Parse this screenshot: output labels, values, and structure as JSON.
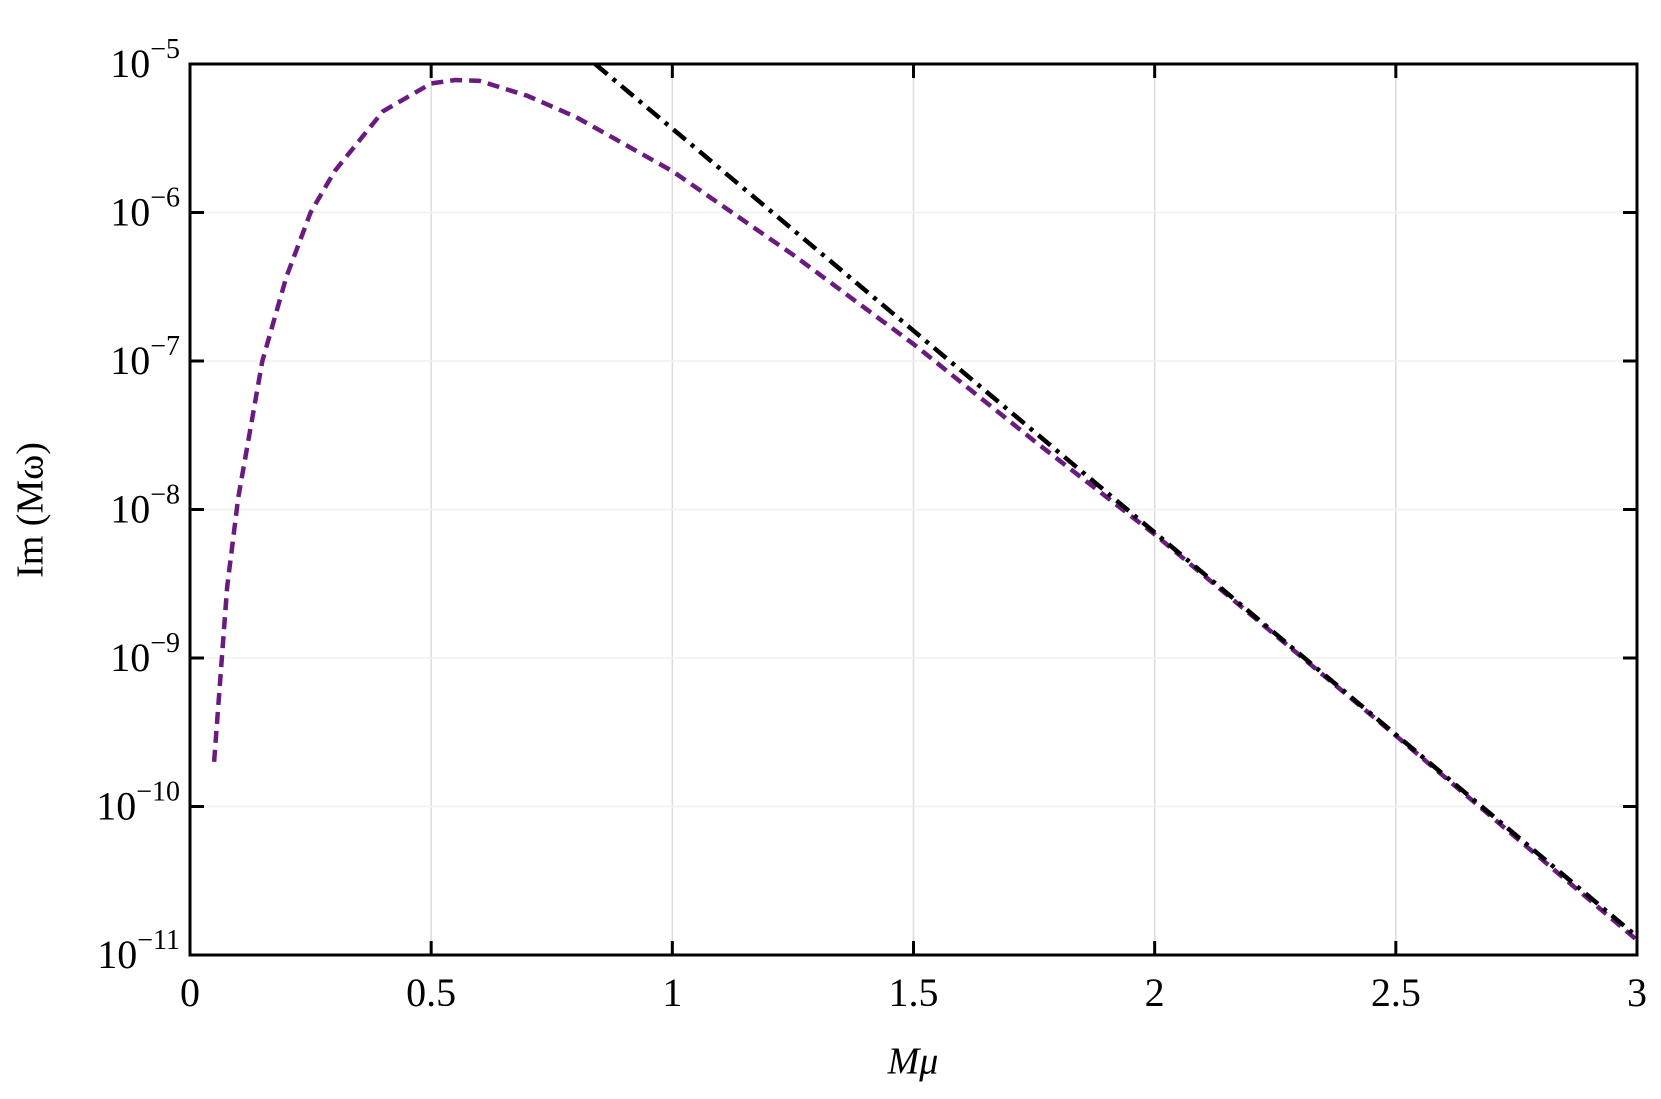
{
  "chart_data": {
    "type": "line",
    "x_label": "Mμ",
    "y_label": "Im (Mω)",
    "xlim": [
      0,
      3
    ],
    "xticks": [
      0,
      0.5,
      1,
      1.5,
      2,
      2.5,
      3
    ],
    "ylim": [
      1e-11,
      1e-05
    ],
    "log_y": true,
    "grid": true,
    "yticks": [
      {
        "value": 1e-11,
        "label": "10−11"
      },
      {
        "value": 1e-10,
        "label": "10−10"
      },
      {
        "value": 1e-09,
        "label": "10−9"
      },
      {
        "value": 1e-08,
        "label": "10−8"
      },
      {
        "value": 1e-07,
        "label": "10−7"
      },
      {
        "value": 1e-06,
        "label": "10−6"
      },
      {
        "value": 1e-05,
        "label": "10−5"
      }
    ],
    "series": [
      {
        "color": "#6a1b80",
        "style": "dashed",
        "x": [
          0.05,
          0.077,
          0.1,
          0.15,
          0.2,
          0.25,
          0.3,
          0.4,
          0.5,
          0.55,
          0.6,
          0.7,
          0.8,
          1.0,
          1.25,
          1.5,
          1.75,
          2.0,
          2.5,
          3.0
        ],
        "values": [
          2e-10,
          3e-09,
          1.2e-08,
          1e-07,
          3.7e-07,
          1e-06,
          1.9e-06,
          4.8e-06,
          7.4e-06,
          7.8e-06,
          7.7e-06,
          6.1e-06,
          4.4e-06,
          1.9e-06,
          5.2e-07,
          1.3e-07,
          2.9e-08,
          6.8e-09,
          3e-10,
          1.26e-11
        ]
      },
      {
        "color": "#000000",
        "style": "dashdot",
        "x": [
          0.84,
          1.0,
          1.5,
          2.0,
          2.5,
          3.0
        ],
        "values": [
          1e-05,
          3.67e-06,
          1.6e-07,
          7e-09,
          3.05e-10,
          1.33e-11
        ]
      }
    ]
  }
}
